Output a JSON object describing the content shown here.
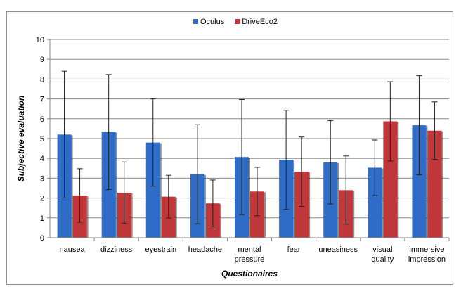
{
  "chart_data": {
    "type": "bar",
    "title": "",
    "xlabel": "Questionaires",
    "ylabel": "Subjective evaluation",
    "ylim": [
      0,
      10
    ],
    "yticks": [
      0,
      1,
      2,
      3,
      4,
      5,
      6,
      7,
      8,
      9,
      10
    ],
    "grid": true,
    "legend": "top-center",
    "categories": [
      [
        "nausea"
      ],
      [
        "dizziness"
      ],
      [
        "eyestrain"
      ],
      [
        "headache"
      ],
      [
        "mental",
        "pressure"
      ],
      [
        "fear"
      ],
      [
        "uneasiness"
      ],
      [
        "visual",
        "quality"
      ],
      [
        "immersive",
        "impression"
      ]
    ],
    "series": [
      {
        "name": "Oculus",
        "color": "#2e6cc7",
        "values": [
          5.2,
          5.33,
          4.8,
          3.2,
          4.07,
          3.93,
          3.8,
          3.53,
          5.67
        ],
        "error": [
          3.2,
          2.9,
          2.2,
          2.5,
          2.9,
          2.5,
          2.1,
          1.4,
          2.5
        ]
      },
      {
        "name": "DriveEco2",
        "color": "#c0373a",
        "values": [
          2.13,
          2.27,
          2.07,
          1.73,
          2.33,
          3.33,
          2.4,
          5.87,
          5.4
        ],
        "error": [
          1.35,
          1.55,
          1.08,
          1.18,
          1.22,
          1.75,
          1.72,
          2.0,
          1.45
        ]
      }
    ]
  }
}
